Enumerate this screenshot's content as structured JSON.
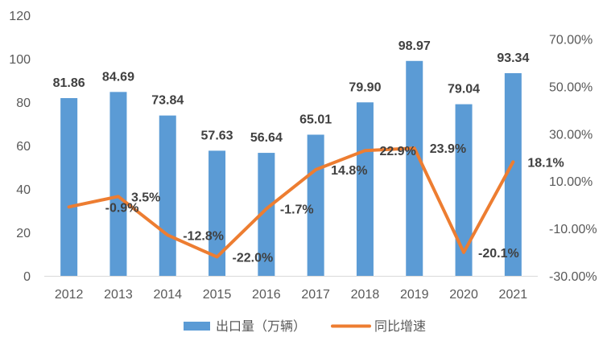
{
  "chart_data": {
    "type": "bar",
    "categories": [
      "2012",
      "2013",
      "2014",
      "2015",
      "2016",
      "2017",
      "2018",
      "2019",
      "2020",
      "2021"
    ],
    "series": [
      {
        "name": "出口量（万辆）",
        "type": "bar",
        "y_axis": "left",
        "color": "#5B9BD5",
        "values": [
          81.86,
          84.69,
          73.84,
          57.63,
          56.64,
          65.01,
          79.9,
          98.97,
          79.04,
          93.34
        ],
        "data_labels": [
          "81.86",
          "84.69",
          "73.84",
          "57.63",
          "56.64",
          "65.01",
          "79.90",
          "98.97",
          "79.04",
          "93.34"
        ]
      },
      {
        "name": "同比增速",
        "type": "line",
        "y_axis": "right",
        "color": "#ED7D31",
        "values": [
          -0.9,
          3.5,
          -12.8,
          -22.0,
          -1.7,
          14.8,
          22.9,
          23.9,
          -20.1,
          18.1
        ],
        "data_labels": [
          "-0.9%",
          "3.5%",
          "-12.8%",
          "-22.0%",
          "-1.7%",
          "14.8%",
          "22.9%",
          "23.9%",
          "-20.1%",
          "18.1%"
        ]
      }
    ],
    "y_left": {
      "ylim": [
        0,
        120
      ],
      "ticks": [
        0,
        20,
        40,
        60,
        80,
        100,
        120
      ],
      "tick_labels": [
        "0",
        "20",
        "40",
        "60",
        "80",
        "100",
        "120"
      ]
    },
    "y_right": {
      "ylim": [
        -30,
        80
      ],
      "ticks": [
        -30,
        -10,
        10,
        30,
        50,
        70
      ],
      "tick_labels": [
        "-30.00%",
        "-10.00%",
        "10.00%",
        "30.00%",
        "50.00%",
        "70.00%"
      ]
    },
    "grid": false,
    "legend": {
      "position": "bottom"
    }
  }
}
